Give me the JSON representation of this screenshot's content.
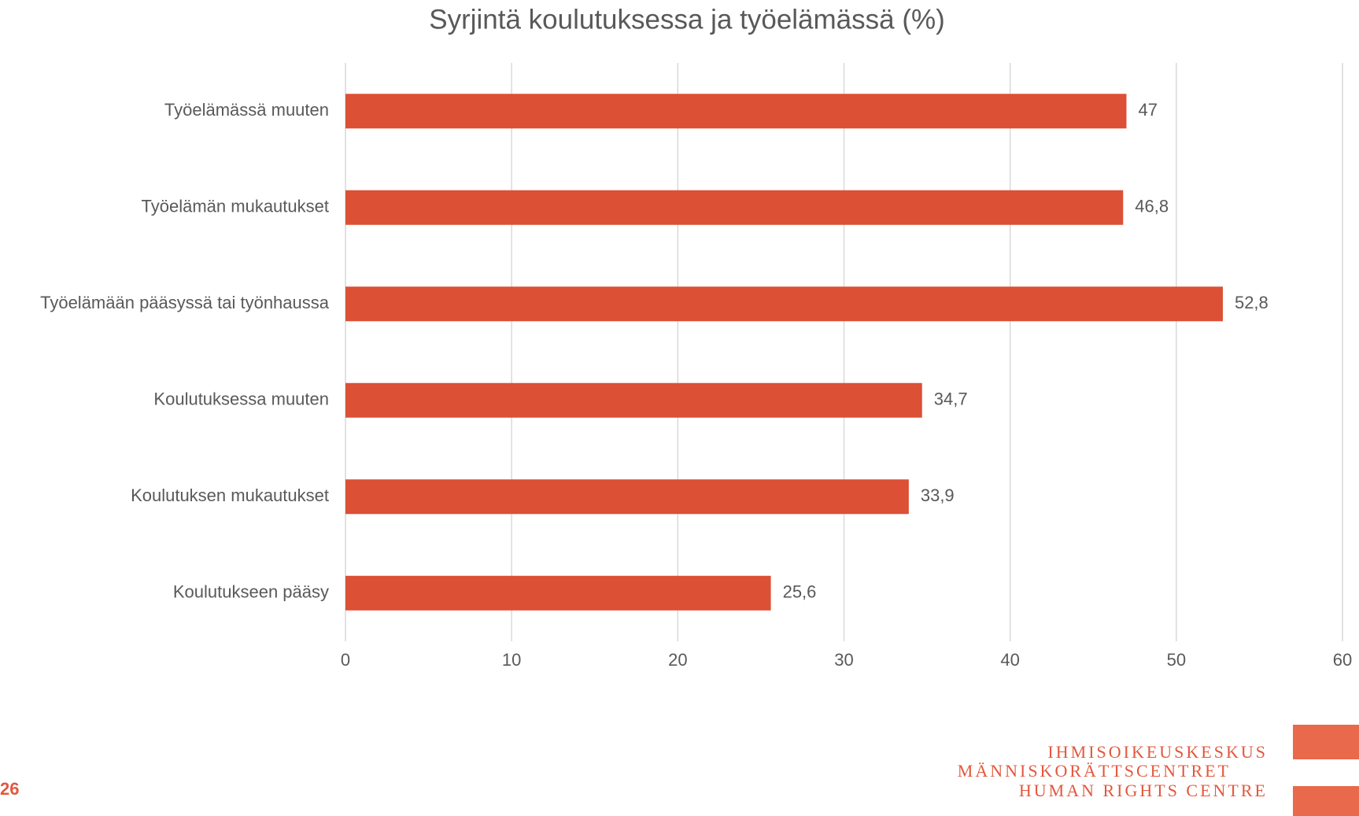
{
  "chart_data": {
    "type": "bar",
    "orientation": "horizontal",
    "title": "Syrjintä koulutuksessa ja työelämässä (%)",
    "categories": [
      "Työelämässä muuten",
      "Työelämän mukautukset",
      "Työelämään pääsyssä tai työnhaussa",
      "Koulutuksessa muuten",
      "Koulutuksen mukautukset",
      "Koulutukseen pääsy"
    ],
    "values": [
      47,
      46.8,
      52.8,
      34.7,
      33.9,
      25.6
    ],
    "value_labels": [
      "47",
      "46,8",
      "52,8",
      "34,7",
      "33,9",
      "25,6"
    ],
    "color": "#dc5035",
    "xlim": [
      0,
      60
    ],
    "xticks": [
      0,
      10,
      20,
      30,
      40,
      50,
      60
    ],
    "grid": true
  },
  "page_number": "26",
  "logo": [
    "IHMISOIKEUSKESKUS",
    "MÄNNISKORÄTTSCENTRET",
    "HUMAN RIGHTS CENTRE"
  ]
}
